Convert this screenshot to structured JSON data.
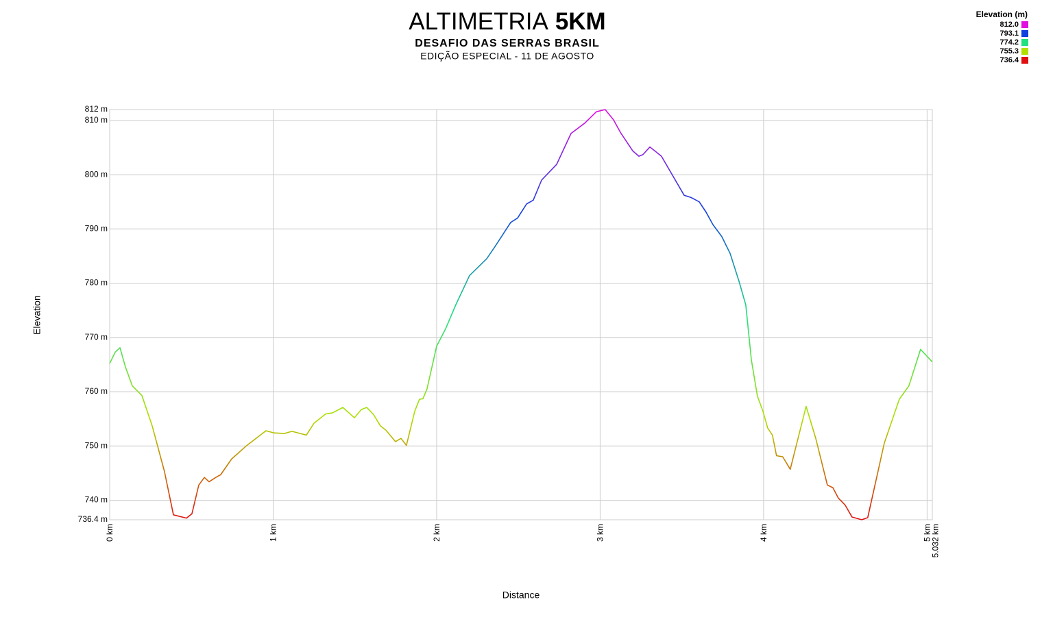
{
  "chart_data": {
    "type": "line",
    "title_parts": [
      "ALTIMETRIA",
      "5KM"
    ],
    "subtitle": "DESAFIO DAS SERRAS BRASIL",
    "caption": "EDIÇÃO ESPECIAL - 11 DE AGOSTO",
    "x_label": "Distance",
    "y_label": "Elevation",
    "legend_title": "Elevation (m)",
    "legend": [
      {
        "value": 812.0,
        "label": "812.0",
        "color": "#e010e0"
      },
      {
        "value": 793.1,
        "label": "793.1",
        "color": "#1040e0"
      },
      {
        "value": 774.2,
        "label": "774.2",
        "color": "#20e080"
      },
      {
        "value": 755.3,
        "label": "755.3",
        "color": "#b0e000"
      },
      {
        "value": 736.4,
        "label": "736.4",
        "color": "#e01010"
      }
    ],
    "grid": true,
    "xlim": [
      0,
      5.032
    ],
    "ylim": [
      736.4,
      812
    ],
    "xticks": [
      {
        "value": 0,
        "label": "0 km"
      },
      {
        "value": 1,
        "label": "1 km"
      },
      {
        "value": 2,
        "label": "2 km"
      },
      {
        "value": 3,
        "label": "3 km"
      },
      {
        "value": 4,
        "label": "4 km"
      },
      {
        "value": 5,
        "label": "5 km"
      },
      {
        "value": 5.032,
        "label": "5.032 km"
      }
    ],
    "yticks": [
      {
        "value": 736.4,
        "label": "736.4 m"
      },
      {
        "value": 740,
        "label": "740 m"
      },
      {
        "value": 750,
        "label": "750 m"
      },
      {
        "value": 760,
        "label": "760 m"
      },
      {
        "value": 770,
        "label": "770 m"
      },
      {
        "value": 780,
        "label": "780 m"
      },
      {
        "value": 790,
        "label": "790 m"
      },
      {
        "value": 800,
        "label": "800 m"
      },
      {
        "value": 810,
        "label": "810 m"
      },
      {
        "value": 812,
        "label": "812 m"
      }
    ],
    "x": [
      0,
      0.034,
      0.063,
      0.096,
      0.138,
      0.197,
      0.26,
      0.335,
      0.39,
      0.47,
      0.503,
      0.545,
      0.579,
      0.608,
      0.654,
      0.679,
      0.746,
      0.839,
      0.956,
      1.006,
      1.069,
      1.115,
      1.203,
      1.25,
      1.321,
      1.363,
      1.426,
      1.497,
      1.539,
      1.572,
      1.614,
      1.656,
      1.69,
      1.748,
      1.782,
      1.815,
      1.866,
      1.895,
      1.916,
      1.941,
      2.0,
      2.055,
      2.117,
      2.201,
      2.306,
      2.356,
      2.453,
      2.495,
      2.55,
      2.591,
      2.642,
      2.734,
      2.822,
      2.906,
      2.977,
      3.031,
      3.082,
      3.124,
      3.199,
      3.237,
      3.262,
      3.304,
      3.342,
      3.375,
      3.514,
      3.556,
      3.606,
      3.648,
      3.69,
      3.744,
      3.795,
      3.849,
      3.891,
      3.925,
      3.962,
      3.996,
      4.025,
      4.054,
      4.079,
      4.117,
      4.163,
      4.26,
      4.319,
      4.39,
      4.424,
      4.457,
      4.499,
      4.541,
      4.6,
      4.637,
      4.696,
      4.738,
      4.78,
      4.83,
      4.889,
      4.96,
      5.032
    ],
    "values": [
      765.2,
      767.3,
      768.1,
      764.6,
      761.1,
      759.3,
      753.7,
      745.3,
      737.3,
      736.7,
      737.5,
      742.8,
      744.2,
      743.4,
      744.3,
      744.7,
      747.6,
      750.1,
      752.8,
      752.4,
      752.3,
      752.7,
      752.0,
      754.2,
      755.9,
      756.1,
      757.1,
      755.2,
      756.7,
      757.1,
      755.8,
      753.7,
      752.9,
      750.8,
      751.4,
      750.1,
      756.4,
      758.6,
      758.7,
      760.5,
      768.4,
      771.6,
      776.0,
      781.4,
      784.5,
      786.7,
      791.2,
      792.0,
      794.6,
      795.3,
      799.0,
      801.9,
      807.6,
      809.5,
      811.6,
      812.0,
      810.1,
      807.8,
      804.4,
      803.4,
      803.7,
      805.1,
      804.2,
      803.4,
      796.2,
      795.8,
      795.0,
      793.1,
      790.8,
      788.6,
      785.5,
      780.4,
      776.0,
      765.9,
      759.2,
      756.4,
      753.3,
      752.0,
      748.2,
      748.0,
      745.7,
      757.3,
      751.4,
      742.8,
      742.3,
      740.4,
      739.1,
      736.9,
      736.4,
      736.8,
      744.8,
      750.5,
      754.2,
      758.6,
      761.1,
      767.8,
      765.5
    ]
  }
}
